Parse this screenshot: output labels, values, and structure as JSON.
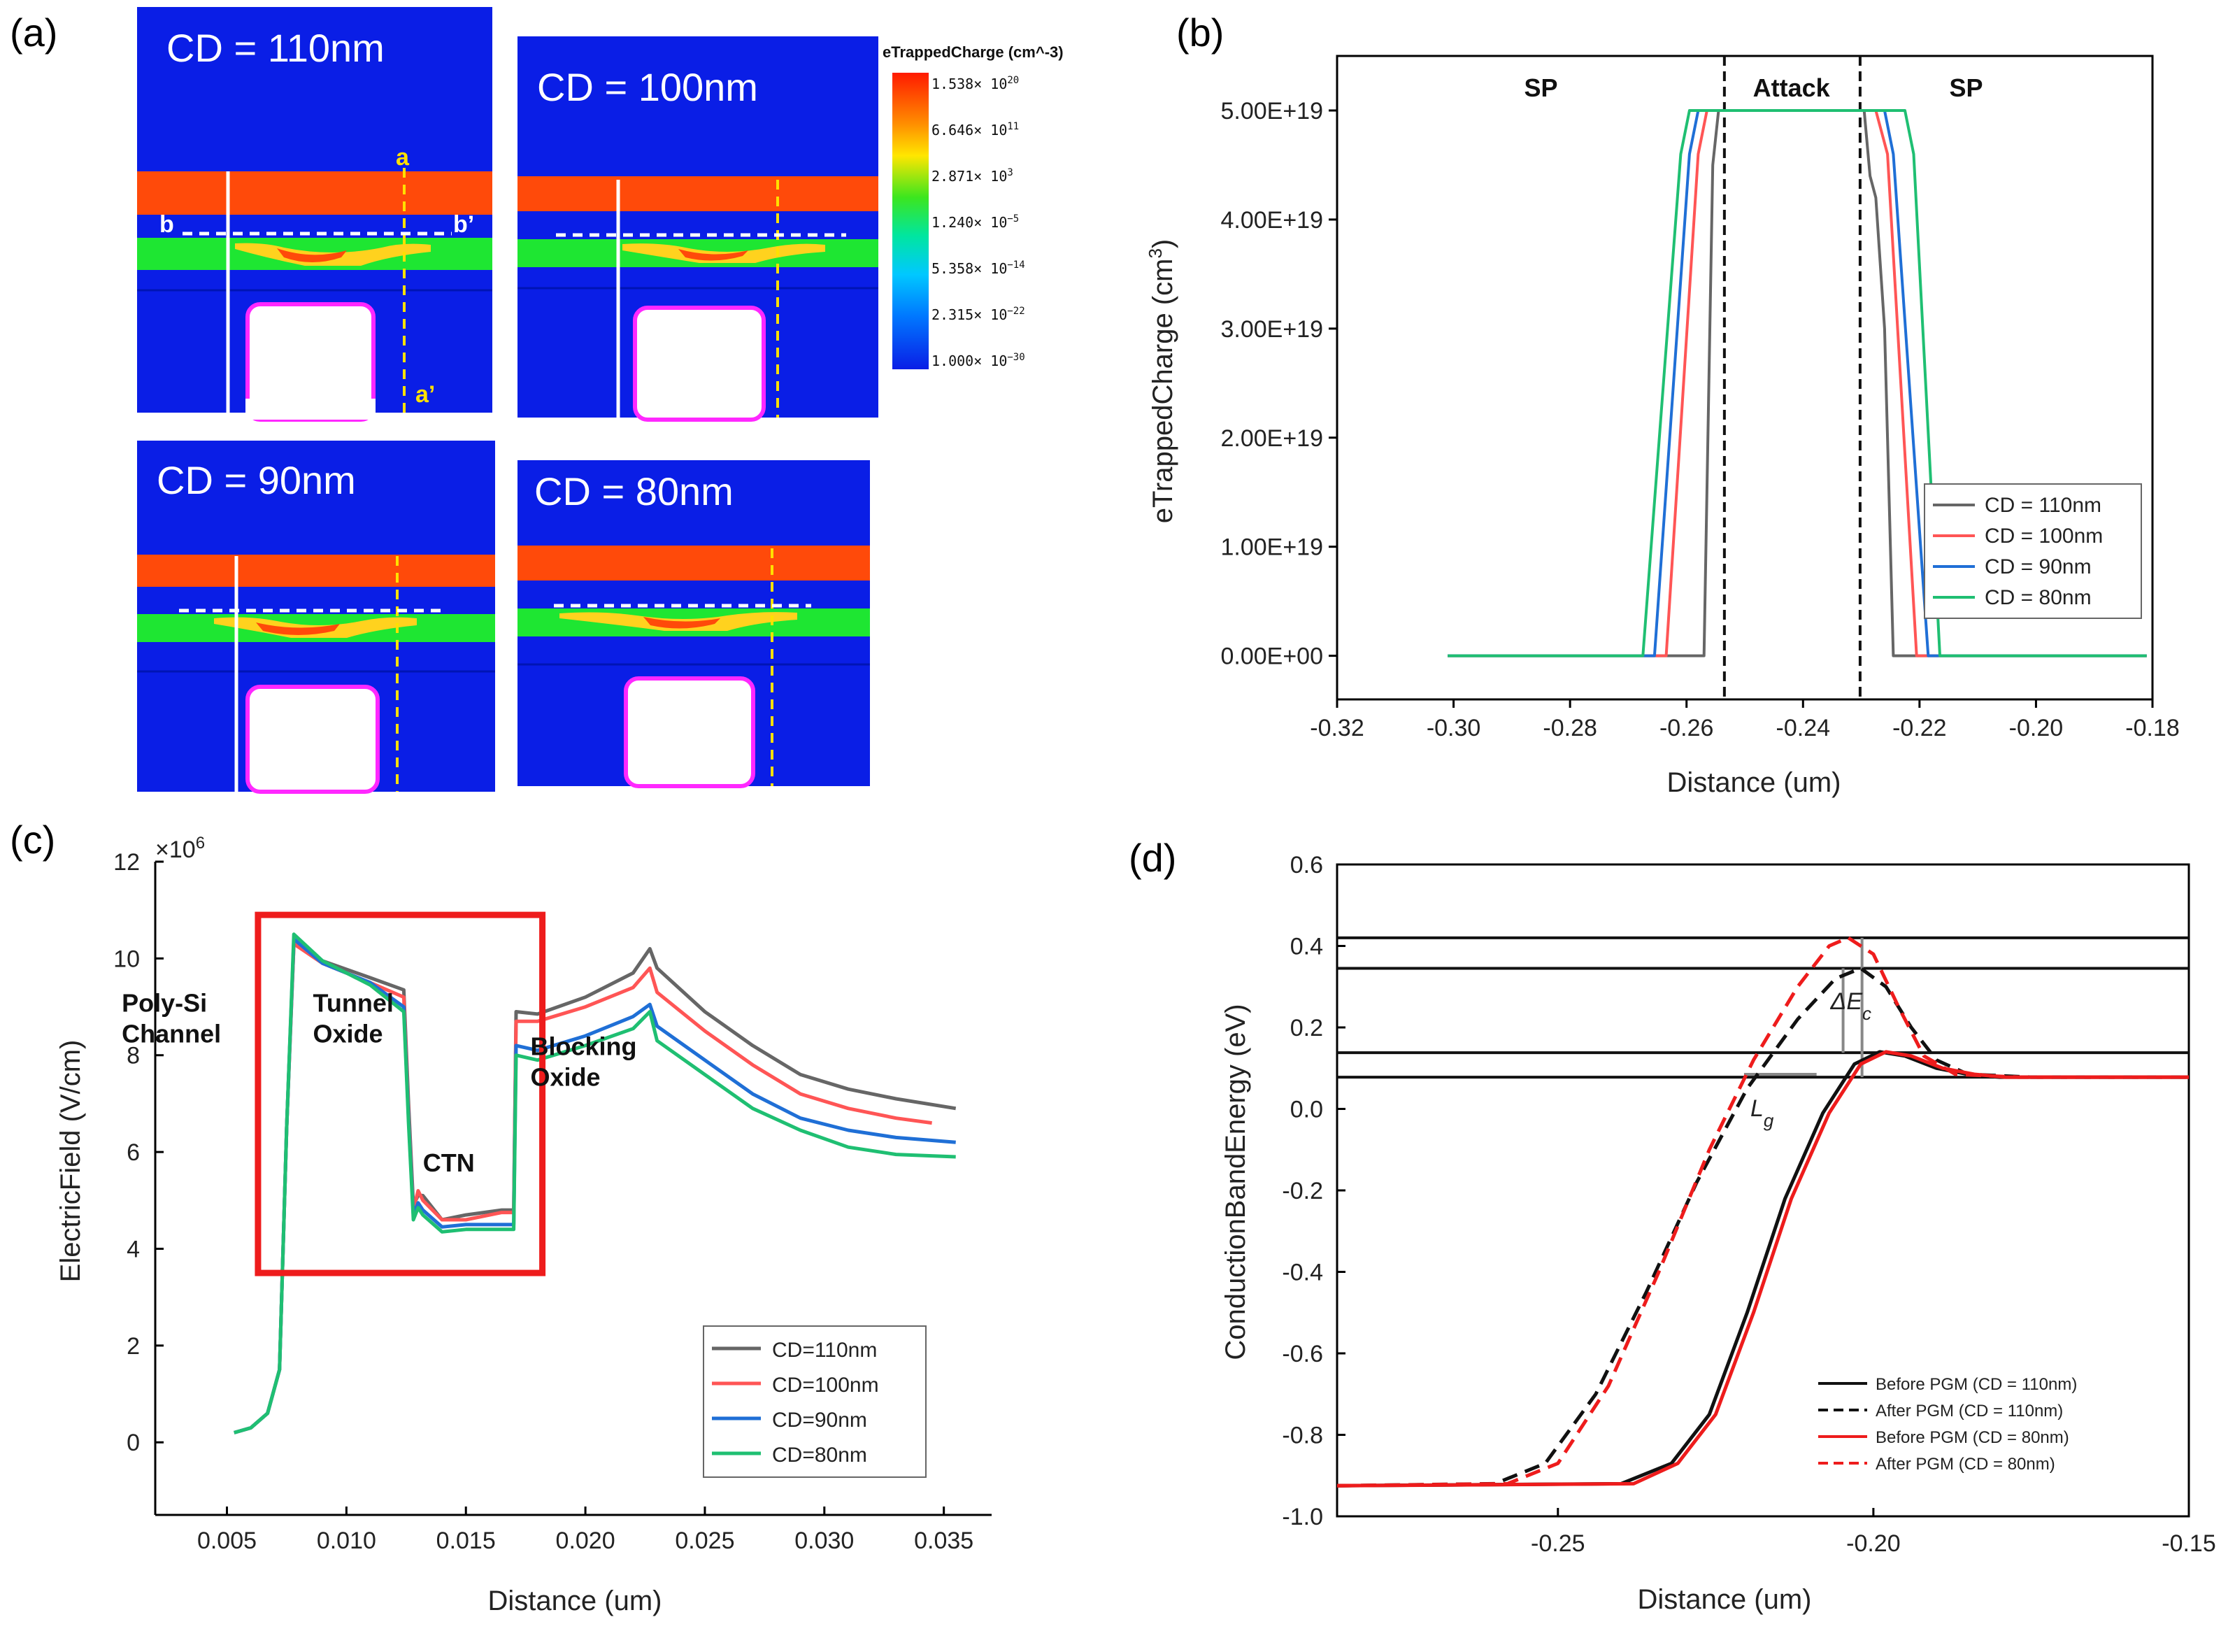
{
  "panels": {
    "a": "(a)",
    "b": "(b)",
    "c": "(c)",
    "d": "(d)"
  },
  "panel_a": {
    "images": [
      {
        "label": "CD = 110nm"
      },
      {
        "label": "CD = 100nm"
      },
      {
        "label": "CD = 90nm"
      },
      {
        "label": "CD = 80nm"
      }
    ],
    "cut_labels": {
      "a": "a",
      "a_prime": "a’",
      "b": "b",
      "b_prime": "b’"
    },
    "colorbar": {
      "title": "eTrappedCharge (cm^-3)",
      "ticks": [
        "1.538× 10",
        "6.646× 10",
        "2.871× 10",
        "1.240× 10",
        "5.358× 10",
        "2.315× 10",
        "1.000× 10"
      ],
      "exponents": [
        "20",
        "11",
        "3",
        "−5",
        "−14",
        "−22",
        "−30"
      ]
    },
    "colors": {
      "background": "#0a1ee6",
      "band_top": "#ff4a0a",
      "band_green": "#1ee632",
      "gate_outline": "#ff28ff",
      "cut_white": "#ffffff",
      "cut_yellow": "#ffe000"
    }
  },
  "chart_data": [
    {
      "id": "b",
      "type": "line",
      "xlabel": "Distance (um)",
      "ylabel": "eTrappedCharge (cm",
      "ylabel_sup": "3",
      "ylabel_end": ")",
      "xlim": [
        -0.32,
        -0.18
      ],
      "ylim": [
        -4e+18,
        5.5e+19
      ],
      "xticks": [
        -0.32,
        -0.3,
        -0.28,
        -0.26,
        -0.24,
        -0.22,
        -0.2,
        -0.18
      ],
      "xtick_labels": [
        "-0.32",
        "-0.30",
        "-0.28",
        "-0.26",
        "-0.24",
        "-0.22",
        "-0.20",
        "-0.18"
      ],
      "yticks": [
        0,
        1e+19,
        2e+19,
        3e+19,
        4e+19,
        5e+19
      ],
      "ytick_labels": [
        "0.00E+00",
        "1.00E+19",
        "2.00E+19",
        "3.00E+19",
        "4.00E+19",
        "5.00E+19"
      ],
      "region_labels": [
        "SP",
        "Attack",
        "SP"
      ],
      "region_label_x": [
        -0.285,
        -0.242,
        -0.212
      ],
      "region_dividers_x": [
        -0.2535,
        -0.2302
      ],
      "series": [
        {
          "name": "CD = 110nm",
          "color": "#666666",
          "x": [
            -0.301,
            -0.257,
            -0.2555,
            -0.2545,
            -0.2535,
            -0.2295,
            -0.2285,
            -0.2275,
            -0.226,
            -0.2255,
            -0.2245,
            -0.181
          ],
          "y": [
            0,
            0,
            4.5e+19,
            5e+19,
            5e+19,
            5e+19,
            4.4e+19,
            4.2e+19,
            3e+19,
            2e+19,
            0,
            0
          ]
        },
        {
          "name": "CD = 100nm",
          "color": "#ff5555",
          "x": [
            -0.301,
            -0.2635,
            -0.258,
            -0.2565,
            -0.2275,
            -0.2255,
            -0.2205,
            -0.181
          ],
          "y": [
            0,
            0,
            4.6e+19,
            5e+19,
            5e+19,
            4.6e+19,
            0,
            0
          ]
        },
        {
          "name": "CD = 90nm",
          "color": "#1f6fd6",
          "x": [
            -0.301,
            -0.2655,
            -0.2595,
            -0.258,
            -0.226,
            -0.2245,
            -0.2185,
            -0.181
          ],
          "y": [
            0,
            0,
            4.6e+19,
            5e+19,
            5e+19,
            4.6e+19,
            0,
            0
          ]
        },
        {
          "name": "CD = 80nm",
          "color": "#1fbf72",
          "x": [
            -0.301,
            -0.2675,
            -0.261,
            -0.2595,
            -0.2225,
            -0.221,
            -0.2165,
            -0.181
          ],
          "y": [
            0,
            0,
            4.6e+19,
            5e+19,
            5e+19,
            4.6e+19,
            0,
            0
          ]
        }
      ],
      "legend_position": "right"
    },
    {
      "id": "c",
      "type": "line",
      "xlabel": "Distance (um)",
      "ylabel": "ElectricField (V/cm)",
      "multiplier": "×10",
      "multiplier_exp": "6",
      "xlim": [
        0.002,
        0.037
      ],
      "ylim": [
        -1.5,
        12
      ],
      "xticks": [
        0.005,
        0.01,
        0.015,
        0.02,
        0.025,
        0.03,
        0.035
      ],
      "xtick_labels": [
        "0.005",
        "0.010",
        "0.015",
        "0.020",
        "0.025",
        "0.030",
        "0.035"
      ],
      "yticks": [
        0,
        2,
        4,
        6,
        8,
        10,
        12
      ],
      "ytick_labels": [
        "0",
        "2",
        "4",
        "6",
        "8",
        "10",
        "12"
      ],
      "annotations": [
        {
          "lines": [
            "Poly-Si",
            "Channel"
          ],
          "x": 0.0006,
          "y": 8.9
        },
        {
          "lines": [
            "Tunnel",
            "Oxide"
          ],
          "x": 0.0086,
          "y": 8.9
        },
        {
          "lines": [
            "CTN"
          ],
          "x": 0.0132,
          "y": 5.6
        },
        {
          "lines": [
            "Blocking",
            "Oxide"
          ],
          "x": 0.0177,
          "y": 8.0
        }
      ],
      "highlight_box": {
        "x0": 0.0063,
        "x1": 0.0182,
        "y0": 3.5,
        "y1": 10.9,
        "color": "#ee1c1c"
      },
      "series": [
        {
          "name": "CD=110nm",
          "color": "#666666",
          "x": [
            0.0053,
            0.006,
            0.0067,
            0.0072,
            0.0075,
            0.0078,
            0.009,
            0.011,
            0.0124,
            0.0126,
            0.0128,
            0.013,
            0.0132,
            0.014,
            0.015,
            0.0165,
            0.017,
            0.0171,
            0.018,
            0.02,
            0.022,
            0.0227,
            0.023,
            0.025,
            0.027,
            0.029,
            0.031,
            0.033,
            0.0355
          ],
          "y": [
            0.2,
            0.3,
            0.6,
            1.5,
            6.5,
            10.3,
            9.95,
            9.6,
            9.35,
            7.0,
            4.9,
            5.1,
            5.1,
            4.6,
            4.7,
            4.8,
            4.8,
            8.9,
            8.85,
            9.2,
            9.7,
            10.2,
            9.8,
            8.9,
            8.2,
            7.6,
            7.3,
            7.1,
            6.9
          ]
        },
        {
          "name": "CD=100nm",
          "color": "#ff5555",
          "x": [
            0.0053,
            0.006,
            0.0067,
            0.0072,
            0.0075,
            0.0078,
            0.009,
            0.011,
            0.0124,
            0.0126,
            0.0128,
            0.013,
            0.0132,
            0.014,
            0.015,
            0.0165,
            0.017,
            0.0171,
            0.018,
            0.02,
            0.022,
            0.0227,
            0.023,
            0.025,
            0.027,
            0.029,
            0.031,
            0.033,
            0.0345
          ],
          "y": [
            0.2,
            0.3,
            0.6,
            1.5,
            6.5,
            10.3,
            9.9,
            9.5,
            9.2,
            6.8,
            4.8,
            5.2,
            5.0,
            4.6,
            4.6,
            4.75,
            4.75,
            8.7,
            8.7,
            9.0,
            9.4,
            9.8,
            9.3,
            8.5,
            7.8,
            7.2,
            6.9,
            6.7,
            6.6
          ]
        },
        {
          "name": "CD=90nm",
          "color": "#1f6fd6",
          "x": [
            0.0053,
            0.006,
            0.0067,
            0.0072,
            0.0075,
            0.0078,
            0.009,
            0.011,
            0.0124,
            0.0126,
            0.0128,
            0.013,
            0.0132,
            0.014,
            0.015,
            0.0165,
            0.017,
            0.0171,
            0.018,
            0.02,
            0.022,
            0.0227,
            0.023,
            0.025,
            0.027,
            0.029,
            0.031,
            0.033,
            0.0355
          ],
          "y": [
            0.2,
            0.3,
            0.6,
            1.5,
            6.5,
            10.4,
            9.9,
            9.5,
            9.0,
            6.7,
            4.7,
            4.95,
            4.8,
            4.45,
            4.5,
            4.5,
            4.5,
            8.2,
            8.1,
            8.4,
            8.8,
            9.05,
            8.6,
            7.9,
            7.2,
            6.7,
            6.45,
            6.3,
            6.2
          ]
        },
        {
          "name": "CD=80nm",
          "color": "#1fbf72",
          "x": [
            0.0053,
            0.006,
            0.0067,
            0.0072,
            0.0075,
            0.0078,
            0.009,
            0.011,
            0.0124,
            0.0126,
            0.0128,
            0.013,
            0.0132,
            0.014,
            0.015,
            0.0165,
            0.017,
            0.0171,
            0.018,
            0.02,
            0.022,
            0.0227,
            0.023,
            0.025,
            0.027,
            0.029,
            0.031,
            0.033,
            0.0355
          ],
          "y": [
            0.2,
            0.3,
            0.6,
            1.5,
            6.5,
            10.5,
            9.95,
            9.45,
            8.9,
            6.6,
            4.6,
            4.85,
            4.7,
            4.35,
            4.4,
            4.4,
            4.4,
            8.0,
            7.9,
            8.2,
            8.55,
            8.9,
            8.3,
            7.6,
            6.9,
            6.45,
            6.1,
            5.95,
            5.9
          ]
        }
      ],
      "legend_position": "bottom-right"
    },
    {
      "id": "d",
      "type": "line",
      "xlabel": "Distance (um)",
      "ylabel": "ConductionBandEnergy (eV)",
      "xlim": [
        -0.285,
        -0.15
      ],
      "ylim": [
        -1.0,
        0.6
      ],
      "xticks": [
        -0.25,
        -0.2,
        -0.15
      ],
      "xtick_labels": [
        "-0.25",
        "-0.20",
        "-0.15"
      ],
      "yticks": [
        -1.0,
        -0.8,
        -0.6,
        -0.4,
        -0.2,
        0.0,
        0.2,
        0.4,
        0.6
      ],
      "ytick_labels": [
        "-1.0",
        "-0.8",
        "-0.6",
        "-0.4",
        "-0.2",
        "0.0",
        "0.2",
        "0.4",
        "0.6"
      ],
      "reference_lines_y": [
        0.42,
        0.345,
        0.138,
        0.078
      ],
      "annotations": [
        {
          "text": "ΔE",
          "sub": "c",
          "x": -0.2068,
          "y": 0.245
        },
        {
          "text": "L",
          "sub": "g",
          "x": -0.2195,
          "y": -0.018
        }
      ],
      "series": [
        {
          "name": "Before PGM (CD = 110nm)",
          "color": "#111111",
          "dash": "solid",
          "x": [
            -0.285,
            -0.24,
            -0.232,
            -0.226,
            -0.22,
            -0.214,
            -0.208,
            -0.203,
            -0.199,
            -0.195,
            -0.19,
            -0.185,
            -0.18,
            -0.17,
            -0.15
          ],
          "y": [
            -0.925,
            -0.92,
            -0.87,
            -0.75,
            -0.5,
            -0.22,
            -0.01,
            0.11,
            0.14,
            0.13,
            0.1,
            0.085,
            0.078,
            0.078,
            0.078
          ]
        },
        {
          "name": "After PGM (CD = 110nm)",
          "color": "#111111",
          "dash": "dashed",
          "x": [
            -0.285,
            -0.26,
            -0.252,
            -0.244,
            -0.236,
            -0.228,
            -0.22,
            -0.212,
            -0.206,
            -0.202,
            -0.198,
            -0.194,
            -0.19,
            -0.185,
            -0.175,
            -0.15
          ],
          "y": [
            -0.925,
            -0.92,
            -0.87,
            -0.7,
            -0.45,
            -0.18,
            0.05,
            0.22,
            0.32,
            0.345,
            0.3,
            0.2,
            0.12,
            0.085,
            0.078,
            0.078
          ]
        },
        {
          "name": "Before PGM (CD = 80nm)",
          "color": "#ee1c1c",
          "dash": "solid",
          "x": [
            -0.285,
            -0.238,
            -0.231,
            -0.225,
            -0.219,
            -0.213,
            -0.207,
            -0.202,
            -0.198,
            -0.194,
            -0.189,
            -0.184,
            -0.179,
            -0.17,
            -0.15
          ],
          "y": [
            -0.925,
            -0.92,
            -0.87,
            -0.75,
            -0.5,
            -0.22,
            -0.01,
            0.11,
            0.14,
            0.13,
            0.1,
            0.085,
            0.078,
            0.078,
            0.078
          ]
        },
        {
          "name": "After PGM (CD = 80nm)",
          "color": "#ee1c1c",
          "dash": "dashed",
          "x": [
            -0.285,
            -0.258,
            -0.25,
            -0.242,
            -0.234,
            -0.226,
            -0.219,
            -0.212,
            -0.207,
            -0.204,
            -0.2,
            -0.196,
            -0.192,
            -0.187,
            -0.177,
            -0.15
          ],
          "y": [
            -0.925,
            -0.92,
            -0.87,
            -0.68,
            -0.4,
            -0.1,
            0.12,
            0.3,
            0.4,
            0.42,
            0.38,
            0.25,
            0.13,
            0.085,
            0.078,
            0.078
          ]
        }
      ],
      "legend_position": "bottom-right"
    }
  ]
}
